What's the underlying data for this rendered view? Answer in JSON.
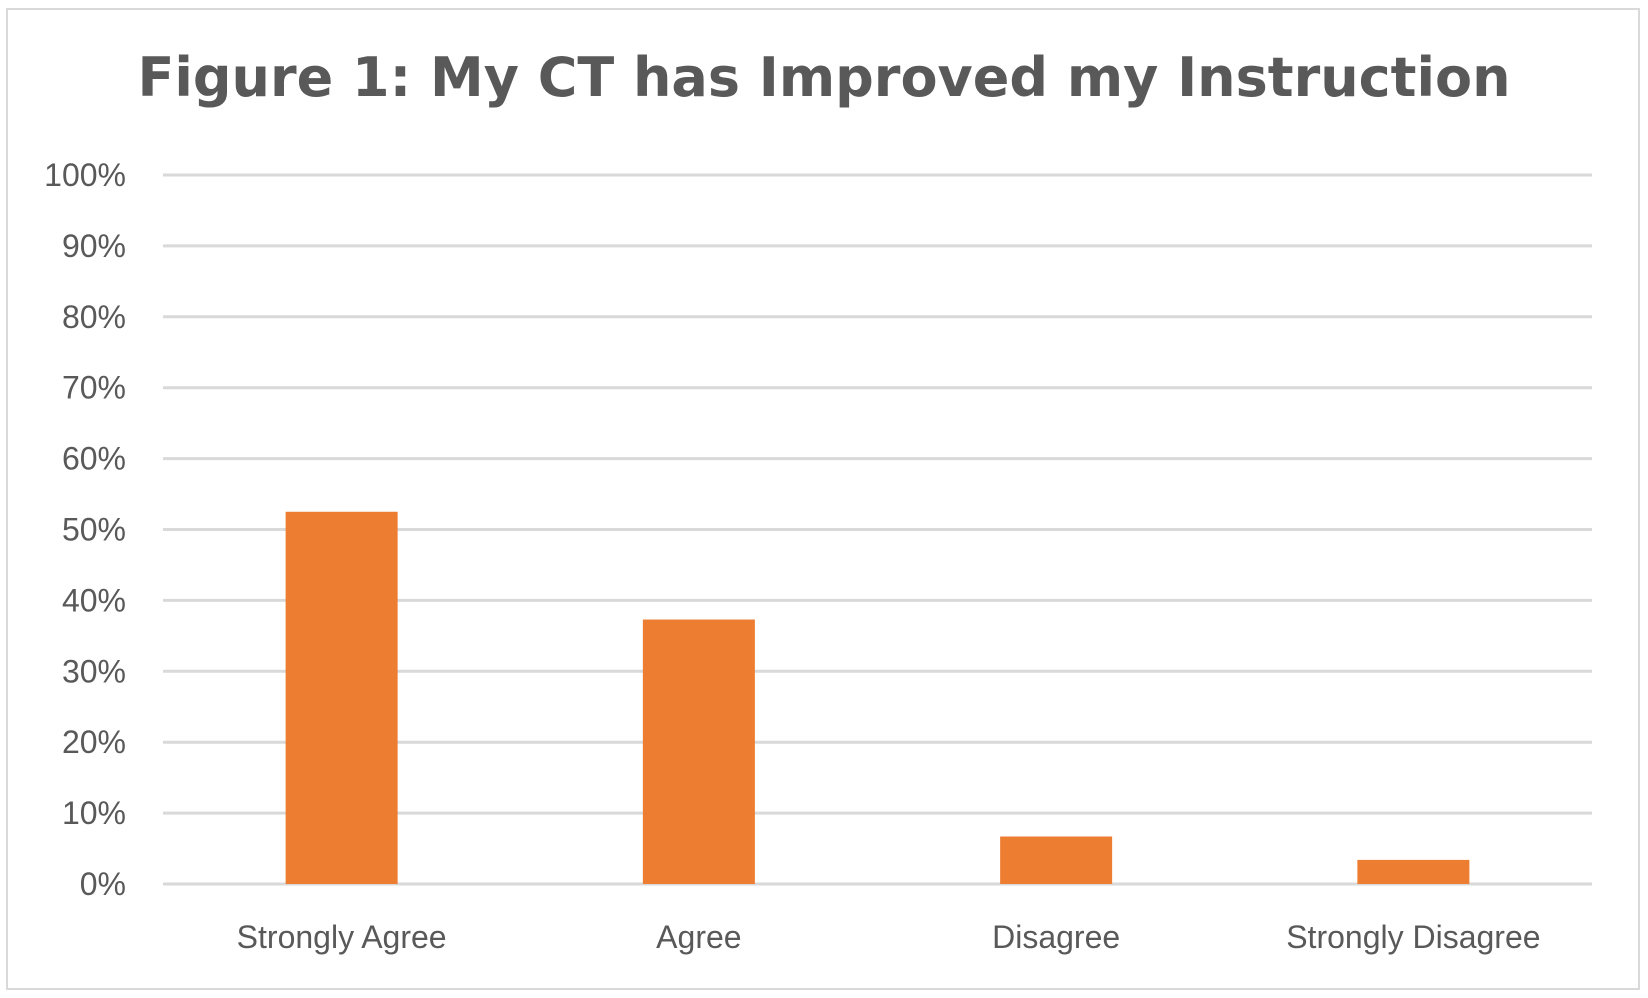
{
  "chart_data": {
    "type": "bar",
    "title": "Figure 1: My CT has Improved my Instruction",
    "categories": [
      "Strongly Agree",
      "Agree",
      "Disagree",
      "Strongly Disagree"
    ],
    "values": [
      52.5,
      37.3,
      6.7,
      3.4
    ],
    "ylim": [
      0,
      100
    ],
    "yticks": [
      "0%",
      "10%",
      "20%",
      "30%",
      "40%",
      "50%",
      "60%",
      "70%",
      "80%",
      "90%",
      "100%"
    ],
    "grid": true,
    "legend": "none",
    "bar_color": "#ED7D31",
    "grid_color": "#D9D9D9",
    "text_color": "#595959"
  }
}
